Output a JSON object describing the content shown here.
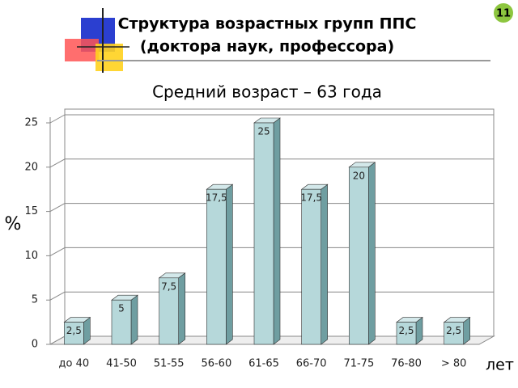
{
  "slide_number": "11",
  "chart_data": {
    "type": "bar",
    "title": [
      "Структура возрастных групп ППС",
      "(доктора наук, профессора)"
    ],
    "subtitle": "Средний возраст – 63 года",
    "y_label": "%",
    "x_label": "лет",
    "categories": [
      "до 40",
      "41-50",
      "51-55",
      "56-60",
      "61-65",
      "66-70",
      "71-75",
      "76-80",
      "> 80"
    ],
    "values": [
      2.5,
      5,
      7.5,
      17.5,
      25,
      17.5,
      20,
      2.5,
      2.5
    ],
    "value_labels": [
      "2,5",
      "5",
      "7,5",
      "17,5",
      "25",
      "17,5",
      "20",
      "2,5",
      "2,5"
    ],
    "color": "#b6d8da",
    "ylim": [
      0,
      25
    ],
    "yticks": [
      0,
      5,
      10,
      15,
      20,
      25
    ],
    "grid": true
  }
}
